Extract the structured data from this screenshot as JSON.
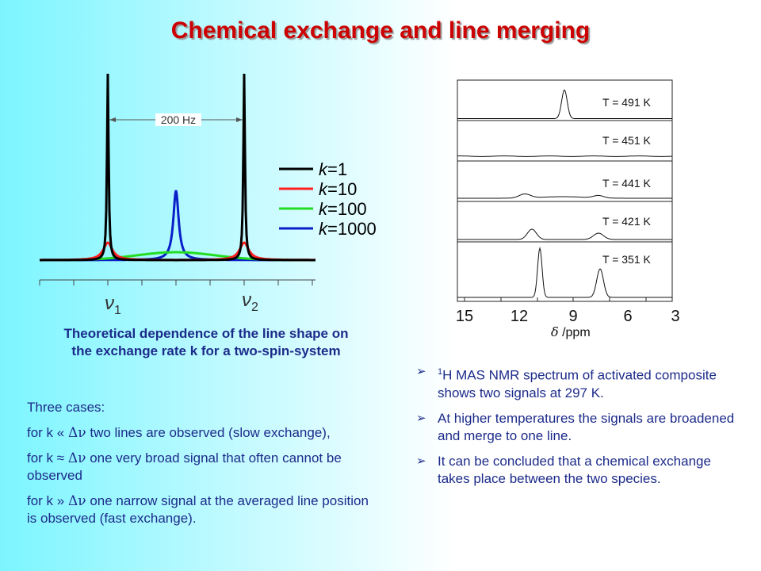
{
  "title": "Chemical exchange and line merging",
  "left_plot": {
    "separation_label": "200 Hz",
    "nu1_label": "ν",
    "nu1_sub": "1",
    "nu2_label": "ν",
    "nu2_sub": "2",
    "legend": [
      {
        "k": "k",
        "value": "=1",
        "color": "#000000"
      },
      {
        "k": "k",
        "value": "=10",
        "color": "#ff2020"
      },
      {
        "k": "k",
        "value": "=100",
        "color": "#22dd22"
      },
      {
        "k": "k",
        "value": "=1000",
        "color": "#0a1fc8"
      }
    ]
  },
  "caption": {
    "line1": "Theoretical dependence of the line shape on",
    "line2": "the exchange rate k for a two-spin-system"
  },
  "cases": {
    "heading": "Three cases:",
    "case1_prefix": "for k «",
    "case1_symbol": "Δν",
    "case1_text": "two lines are observed (slow exchange),",
    "case2_prefix": "for k ≈",
    "case2_symbol": "Δν",
    "case2_text": "one very broad signal that often cannot be observed",
    "case3_prefix": "for k »",
    "case3_symbol": "Δν",
    "case3_text": "one narrow signal at the averaged line position is observed (fast exchange)."
  },
  "right_plot": {
    "temperatures": [
      "T = 491 K",
      "T = 451 K",
      "T = 441 K",
      "T = 421 K",
      "T = 351 K"
    ],
    "x_ticks": [
      "15",
      "12",
      "9",
      "6",
      "3"
    ],
    "x_label_symbol": "δ",
    "x_label_unit": " /ppm"
  },
  "bullets": {
    "b1_sup": "1",
    "b1_text": "H MAS NMR spectrum of activated composite shows two signals at 297 K.",
    "b2_text": "At higher temperatures the signals are broadened and merge to one line.",
    "b3_text": "It can be concluded that a chemical exchange takes place between the two species."
  }
}
